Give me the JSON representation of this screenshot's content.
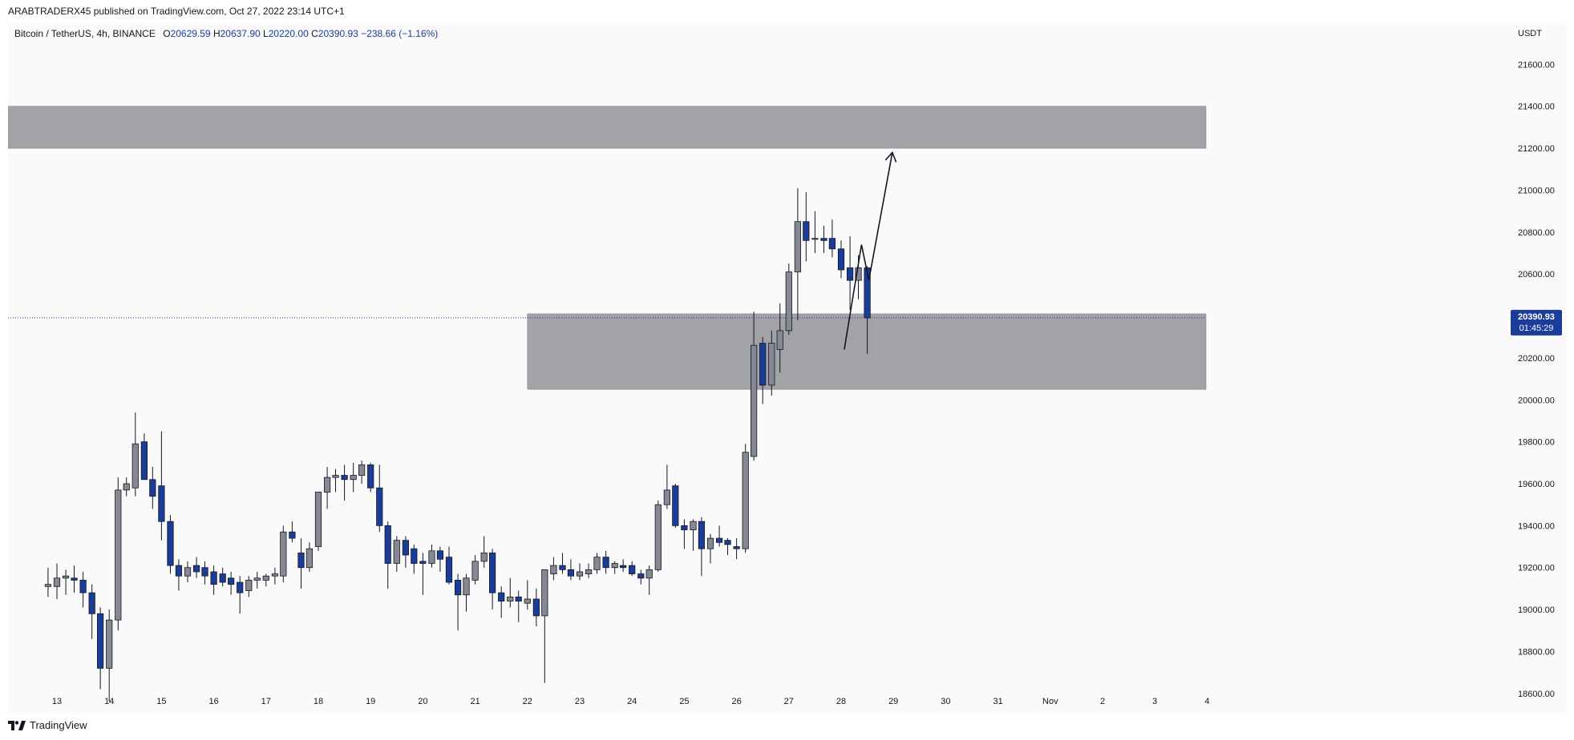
{
  "publish_line": "ARABTRADERX45 published on TradingView.com, Oct 27, 2022 23:14 UTC+1",
  "legend": {
    "symbol": "Bitcoin / TetherUS, 4h, BINANCE",
    "o_label": "O",
    "o_value": "20629.59",
    "h_label": "H",
    "h_value": "20637.90",
    "l_label": "L",
    "l_value": "20220.00",
    "c_label": "C",
    "c_value": "20390.93",
    "change": "−238.66 (−1.16%)"
  },
  "logo_text": "TradingView",
  "colors": {
    "bull_body": "#868993",
    "bear_body": "#1c3c99",
    "wick": "#131722",
    "zone_fill": "#9a9ba0",
    "price_tag": "#1c3c99",
    "background": "#fafafa"
  },
  "chart_data": {
    "type": "candlestick",
    "y_axis_unit": "USDT",
    "ylim": [
      18500,
      21800
    ],
    "y_ticks": [
      "18600.00",
      "18800.00",
      "19000.00",
      "19200.00",
      "19400.00",
      "19600.00",
      "19800.00",
      "20000.00",
      "20200.00",
      "20400.00",
      "20600.00",
      "20800.00",
      "21000.00",
      "21200.00",
      "21400.00",
      "21600.00"
    ],
    "x_tick_labels": [
      "13",
      "14",
      "15",
      "16",
      "17",
      "18",
      "19",
      "20",
      "21",
      "22",
      "23",
      "24",
      "25",
      "26",
      "27",
      "28",
      "29",
      "30",
      "31",
      "Nov",
      "2",
      "3",
      "4"
    ],
    "last_price": {
      "value": "20390.93",
      "countdown": "01:45:29"
    },
    "zones": [
      {
        "name": "resistance-zone",
        "from_day": 12.0,
        "to_day": 35.3,
        "low": 21200,
        "high": 21400
      },
      {
        "name": "support-zone",
        "from_day": 22.0,
        "to_day": 35.3,
        "low": 20050,
        "high": 20410
      }
    ],
    "projection_path": [
      {
        "day": 28.06,
        "price": 20240
      },
      {
        "day": 28.39,
        "price": 20740
      },
      {
        "day": 28.53,
        "price": 20570
      },
      {
        "day": 28.98,
        "price": 21180
      }
    ],
    "candles": [
      {
        "day": 12.83,
        "o": 19110,
        "h": 19200,
        "l": 19060,
        "c": 19120
      },
      {
        "day": 13.0,
        "o": 19110,
        "h": 19220,
        "l": 19050,
        "c": 19150
      },
      {
        "day": 13.17,
        "o": 19150,
        "h": 19190,
        "l": 19070,
        "c": 19160
      },
      {
        "day": 13.33,
        "o": 19150,
        "h": 19210,
        "l": 19080,
        "c": 19140
      },
      {
        "day": 13.5,
        "o": 19140,
        "h": 19180,
        "l": 19010,
        "c": 19080
      },
      {
        "day": 13.67,
        "o": 19080,
        "h": 19120,
        "l": 18860,
        "c": 18980
      },
      {
        "day": 13.83,
        "o": 18980,
        "h": 19010,
        "l": 18620,
        "c": 18720
      },
      {
        "day": 14.0,
        "o": 18720,
        "h": 19000,
        "l": 18560,
        "c": 18950
      },
      {
        "day": 14.17,
        "o": 18950,
        "h": 19630,
        "l": 18900,
        "c": 19570
      },
      {
        "day": 14.33,
        "o": 19570,
        "h": 19630,
        "l": 19540,
        "c": 19600
      },
      {
        "day": 14.5,
        "o": 19580,
        "h": 19940,
        "l": 19540,
        "c": 19790
      },
      {
        "day": 14.67,
        "o": 19800,
        "h": 19840,
        "l": 19640,
        "c": 19620
      },
      {
        "day": 14.83,
        "o": 19620,
        "h": 19680,
        "l": 19480,
        "c": 19540
      },
      {
        "day": 15.0,
        "o": 19590,
        "h": 19850,
        "l": 19330,
        "c": 19420
      },
      {
        "day": 15.17,
        "o": 19420,
        "h": 19450,
        "l": 19170,
        "c": 19210
      },
      {
        "day": 15.33,
        "o": 19210,
        "h": 19240,
        "l": 19090,
        "c": 19160
      },
      {
        "day": 15.5,
        "o": 19160,
        "h": 19230,
        "l": 19130,
        "c": 19200
      },
      {
        "day": 15.67,
        "o": 19210,
        "h": 19250,
        "l": 19150,
        "c": 19180
      },
      {
        "day": 15.83,
        "o": 19200,
        "h": 19230,
        "l": 19120,
        "c": 19160
      },
      {
        "day": 16.0,
        "o": 19180,
        "h": 19210,
        "l": 19070,
        "c": 19120
      },
      {
        "day": 16.17,
        "o": 19170,
        "h": 19200,
        "l": 19110,
        "c": 19130
      },
      {
        "day": 16.33,
        "o": 19150,
        "h": 19180,
        "l": 19070,
        "c": 19120
      },
      {
        "day": 16.5,
        "o": 19130,
        "h": 19160,
        "l": 18980,
        "c": 19080
      },
      {
        "day": 16.67,
        "o": 19090,
        "h": 19160,
        "l": 19060,
        "c": 19140
      },
      {
        "day": 16.83,
        "o": 19140,
        "h": 19180,
        "l": 19100,
        "c": 19150
      },
      {
        "day": 17.0,
        "o": 19140,
        "h": 19170,
        "l": 19110,
        "c": 19160
      },
      {
        "day": 17.17,
        "o": 19160,
        "h": 19200,
        "l": 19120,
        "c": 19170
      },
      {
        "day": 17.33,
        "o": 19160,
        "h": 19400,
        "l": 19130,
        "c": 19370
      },
      {
        "day": 17.5,
        "o": 19370,
        "h": 19420,
        "l": 19320,
        "c": 19340
      },
      {
        "day": 17.67,
        "o": 19270,
        "h": 19340,
        "l": 19100,
        "c": 19200
      },
      {
        "day": 17.83,
        "o": 19200,
        "h": 19320,
        "l": 19180,
        "c": 19290
      },
      {
        "day": 18.0,
        "o": 19300,
        "h": 19560,
        "l": 19280,
        "c": 19560
      },
      {
        "day": 18.17,
        "o": 19560,
        "h": 19680,
        "l": 19480,
        "c": 19630
      },
      {
        "day": 18.33,
        "o": 19630,
        "h": 19670,
        "l": 19560,
        "c": 19640
      },
      {
        "day": 18.5,
        "o": 19640,
        "h": 19690,
        "l": 19520,
        "c": 19620
      },
      {
        "day": 18.67,
        "o": 19620,
        "h": 19700,
        "l": 19560,
        "c": 19640
      },
      {
        "day": 18.83,
        "o": 19640,
        "h": 19710,
        "l": 19600,
        "c": 19690
      },
      {
        "day": 19.0,
        "o": 19690,
        "h": 19700,
        "l": 19560,
        "c": 19580
      },
      {
        "day": 19.17,
        "o": 19580,
        "h": 19690,
        "l": 19370,
        "c": 19400
      },
      {
        "day": 19.33,
        "o": 19400,
        "h": 19420,
        "l": 19100,
        "c": 19220
      },
      {
        "day": 19.5,
        "o": 19220,
        "h": 19350,
        "l": 19180,
        "c": 19330
      },
      {
        "day": 19.67,
        "o": 19330,
        "h": 19350,
        "l": 19200,
        "c": 19260
      },
      {
        "day": 19.83,
        "o": 19290,
        "h": 19310,
        "l": 19170,
        "c": 19220
      },
      {
        "day": 20.0,
        "o": 19230,
        "h": 19270,
        "l": 19070,
        "c": 19220
      },
      {
        "day": 20.17,
        "o": 19220,
        "h": 19310,
        "l": 19200,
        "c": 19280
      },
      {
        "day": 20.33,
        "o": 19280,
        "h": 19300,
        "l": 19180,
        "c": 19240
      },
      {
        "day": 20.5,
        "o": 19250,
        "h": 19300,
        "l": 19120,
        "c": 19130
      },
      {
        "day": 20.67,
        "o": 19140,
        "h": 19170,
        "l": 18900,
        "c": 19070
      },
      {
        "day": 20.83,
        "o": 19070,
        "h": 19170,
        "l": 18990,
        "c": 19150
      },
      {
        "day": 21.0,
        "o": 19140,
        "h": 19260,
        "l": 19120,
        "c": 19230
      },
      {
        "day": 21.17,
        "o": 19230,
        "h": 19350,
        "l": 19200,
        "c": 19270
      },
      {
        "day": 21.33,
        "o": 19270,
        "h": 19290,
        "l": 19000,
        "c": 19080
      },
      {
        "day": 21.5,
        "o": 19080,
        "h": 19110,
        "l": 18960,
        "c": 19040
      },
      {
        "day": 21.67,
        "o": 19040,
        "h": 19150,
        "l": 19010,
        "c": 19060
      },
      {
        "day": 21.83,
        "o": 19060,
        "h": 19090,
        "l": 18940,
        "c": 19040
      },
      {
        "day": 22.0,
        "o": 19030,
        "h": 19140,
        "l": 19000,
        "c": 19050
      },
      {
        "day": 22.17,
        "o": 19050,
        "h": 19100,
        "l": 18920,
        "c": 18970
      },
      {
        "day": 22.33,
        "o": 18970,
        "h": 19180,
        "l": 18650,
        "c": 19190
      },
      {
        "day": 22.5,
        "o": 19170,
        "h": 19250,
        "l": 19140,
        "c": 19210
      },
      {
        "day": 22.67,
        "o": 19210,
        "h": 19270,
        "l": 19170,
        "c": 19190
      },
      {
        "day": 22.83,
        "o": 19190,
        "h": 19240,
        "l": 19140,
        "c": 19160
      },
      {
        "day": 23.0,
        "o": 19160,
        "h": 19220,
        "l": 19140,
        "c": 19180
      },
      {
        "day": 23.17,
        "o": 19170,
        "h": 19220,
        "l": 19150,
        "c": 19190
      },
      {
        "day": 23.33,
        "o": 19190,
        "h": 19270,
        "l": 19170,
        "c": 19250
      },
      {
        "day": 23.5,
        "o": 19250,
        "h": 19280,
        "l": 19170,
        "c": 19200
      },
      {
        "day": 23.67,
        "o": 19200,
        "h": 19230,
        "l": 19170,
        "c": 19220
      },
      {
        "day": 23.83,
        "o": 19210,
        "h": 19240,
        "l": 19180,
        "c": 19200
      },
      {
        "day": 24.0,
        "o": 19210,
        "h": 19230,
        "l": 19160,
        "c": 19170
      },
      {
        "day": 24.17,
        "o": 19170,
        "h": 19190,
        "l": 19120,
        "c": 19150
      },
      {
        "day": 24.33,
        "o": 19150,
        "h": 19210,
        "l": 19070,
        "c": 19190
      },
      {
        "day": 24.5,
        "o": 19190,
        "h": 19520,
        "l": 19180,
        "c": 19500
      },
      {
        "day": 24.67,
        "o": 19500,
        "h": 19690,
        "l": 19480,
        "c": 19570
      },
      {
        "day": 24.83,
        "o": 19590,
        "h": 19600,
        "l": 19390,
        "c": 19400
      },
      {
        "day": 25.0,
        "o": 19400,
        "h": 19430,
        "l": 19290,
        "c": 19380
      },
      {
        "day": 25.17,
        "o": 19380,
        "h": 19430,
        "l": 19280,
        "c": 19420
      },
      {
        "day": 25.33,
        "o": 19420,
        "h": 19440,
        "l": 19160,
        "c": 19290
      },
      {
        "day": 25.5,
        "o": 19290,
        "h": 19360,
        "l": 19220,
        "c": 19340
      },
      {
        "day": 25.67,
        "o": 19340,
        "h": 19400,
        "l": 19300,
        "c": 19320
      },
      {
        "day": 25.83,
        "o": 19330,
        "h": 19340,
        "l": 19260,
        "c": 19310
      },
      {
        "day": 26.0,
        "o": 19300,
        "h": 19340,
        "l": 19240,
        "c": 19290
      },
      {
        "day": 26.17,
        "o": 19290,
        "h": 19790,
        "l": 19270,
        "c": 19750
      },
      {
        "day": 26.33,
        "o": 19730,
        "h": 20420,
        "l": 19710,
        "c": 20260
      },
      {
        "day": 26.5,
        "o": 20270,
        "h": 20300,
        "l": 19980,
        "c": 20070
      },
      {
        "day": 26.67,
        "o": 20070,
        "h": 20330,
        "l": 20020,
        "c": 20270
      },
      {
        "day": 26.83,
        "o": 20240,
        "h": 20460,
        "l": 20130,
        "c": 20330
      },
      {
        "day": 27.0,
        "o": 20330,
        "h": 20650,
        "l": 20310,
        "c": 20610
      },
      {
        "day": 27.17,
        "o": 20610,
        "h": 21010,
        "l": 20380,
        "c": 20850
      },
      {
        "day": 27.33,
        "o": 20850,
        "h": 20990,
        "l": 20660,
        "c": 20760
      },
      {
        "day": 27.5,
        "o": 20770,
        "h": 20900,
        "l": 20700,
        "c": 20770
      },
      {
        "day": 27.67,
        "o": 20770,
        "h": 20830,
        "l": 20700,
        "c": 20760
      },
      {
        "day": 27.83,
        "o": 20770,
        "h": 20860,
        "l": 20680,
        "c": 20720
      },
      {
        "day": 28.0,
        "o": 20720,
        "h": 20760,
        "l": 20580,
        "c": 20620
      },
      {
        "day": 28.17,
        "o": 20630,
        "h": 20780,
        "l": 20430,
        "c": 20570
      },
      {
        "day": 28.33,
        "o": 20570,
        "h": 20690,
        "l": 20480,
        "c": 20630
      },
      {
        "day": 28.5,
        "o": 20629.59,
        "h": 20637.9,
        "l": 20220.0,
        "c": 20390.93
      }
    ]
  }
}
